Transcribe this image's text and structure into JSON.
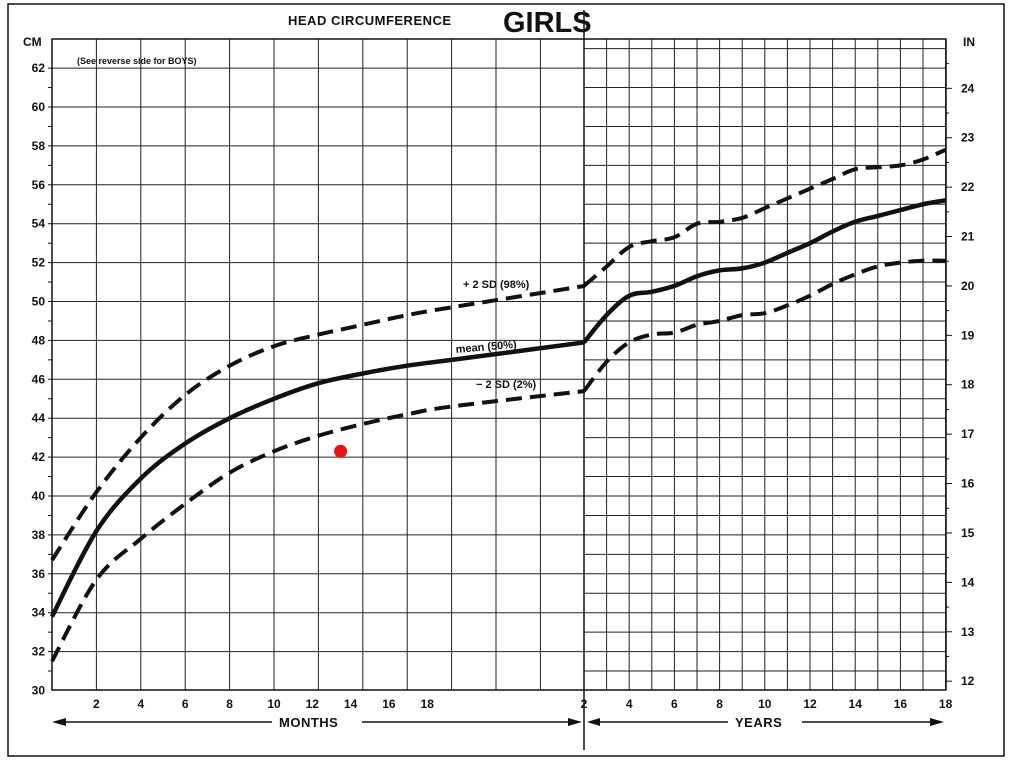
{
  "chart_data": {
    "type": "line",
    "title": "HEAD CIRCUMFERENCE",
    "title_emphasis": "GIRLS",
    "note": "(See reverse side for BOYS)",
    "left_unit": "CM",
    "right_unit": "IN",
    "grid": true,
    "y_left_ticks": [
      "30",
      "32",
      "34",
      "36",
      "38",
      "40",
      "42",
      "44",
      "46",
      "48",
      "50",
      "52",
      "54",
      "56",
      "58",
      "60",
      "62"
    ],
    "y_right_ticks": [
      "12",
      "13",
      "14",
      "15",
      "16",
      "17",
      "18",
      "19",
      "20",
      "21",
      "22",
      "23",
      "24"
    ],
    "ylim_cm": [
      30,
      63
    ],
    "x_month_ticks": [
      "2",
      "4",
      "6",
      "8",
      "10",
      "12",
      "14",
      "16",
      "18"
    ],
    "x_year_ticks": [
      "2",
      "4",
      "6",
      "8",
      "10",
      "12",
      "14",
      "16",
      "18"
    ],
    "x_months_label": "MONTHS",
    "x_years_label": "YEARS",
    "series": [
      {
        "name": "+ 2 SD (98%)",
        "style": "dashed",
        "months": [
          [
            0,
            36.7
          ],
          [
            2,
            40.2
          ],
          [
            4,
            43.0
          ],
          [
            6,
            45.2
          ],
          [
            8,
            46.7
          ],
          [
            10,
            47.7
          ],
          [
            12,
            48.3
          ],
          [
            14,
            48.8
          ],
          [
            16,
            49.3
          ],
          [
            18,
            49.7
          ],
          [
            24,
            50.8
          ]
        ],
        "years": [
          [
            2,
            50.8
          ],
          [
            3,
            51.8
          ],
          [
            4,
            52.8
          ],
          [
            5,
            53.1
          ],
          [
            6,
            53.3
          ],
          [
            7,
            54.0
          ],
          [
            8,
            54.1
          ],
          [
            9,
            54.3
          ],
          [
            10,
            54.8
          ],
          [
            11,
            55.3
          ],
          [
            12,
            55.8
          ],
          [
            13,
            56.3
          ],
          [
            14,
            56.8
          ],
          [
            15,
            56.9
          ],
          [
            16,
            57.0
          ],
          [
            17,
            57.3
          ],
          [
            18,
            57.8
          ]
        ]
      },
      {
        "name": "mean (50%)",
        "style": "solid",
        "months": [
          [
            0,
            33.8
          ],
          [
            2,
            38.2
          ],
          [
            4,
            40.9
          ],
          [
            6,
            42.7
          ],
          [
            8,
            44.0
          ],
          [
            10,
            45.0
          ],
          [
            12,
            45.8
          ],
          [
            14,
            46.3
          ],
          [
            16,
            46.7
          ],
          [
            18,
            47.0
          ],
          [
            24,
            47.9
          ]
        ],
        "years": [
          [
            2,
            47.9
          ],
          [
            3,
            49.3
          ],
          [
            4,
            50.3
          ],
          [
            5,
            50.5
          ],
          [
            6,
            50.8
          ],
          [
            7,
            51.3
          ],
          [
            8,
            51.6
          ],
          [
            9,
            51.7
          ],
          [
            10,
            52.0
          ],
          [
            11,
            52.5
          ],
          [
            12,
            53.0
          ],
          [
            13,
            53.6
          ],
          [
            14,
            54.1
          ],
          [
            15,
            54.4
          ],
          [
            16,
            54.7
          ],
          [
            17,
            55.0
          ],
          [
            18,
            55.2
          ]
        ]
      },
      {
        "name": "− 2 SD (2%)",
        "style": "dashed",
        "months": [
          [
            0,
            31.5
          ],
          [
            2,
            35.7
          ],
          [
            4,
            37.8
          ],
          [
            6,
            39.6
          ],
          [
            8,
            41.2
          ],
          [
            10,
            42.3
          ],
          [
            12,
            43.1
          ],
          [
            14,
            43.7
          ],
          [
            16,
            44.2
          ],
          [
            18,
            44.6
          ],
          [
            24,
            45.4
          ]
        ],
        "years": [
          [
            2,
            45.4
          ],
          [
            3,
            46.9
          ],
          [
            4,
            47.9
          ],
          [
            5,
            48.3
          ],
          [
            6,
            48.4
          ],
          [
            7,
            48.8
          ],
          [
            8,
            49.0
          ],
          [
            9,
            49.3
          ],
          [
            10,
            49.4
          ],
          [
            11,
            49.8
          ],
          [
            12,
            50.3
          ],
          [
            13,
            50.9
          ],
          [
            14,
            51.4
          ],
          [
            15,
            51.8
          ],
          [
            16,
            52.0
          ],
          [
            17,
            52.1
          ],
          [
            18,
            52.1
          ]
        ]
      }
    ],
    "marker": {
      "age_months": 13,
      "head_cm": 42.3,
      "color": "#ee1111"
    }
  }
}
